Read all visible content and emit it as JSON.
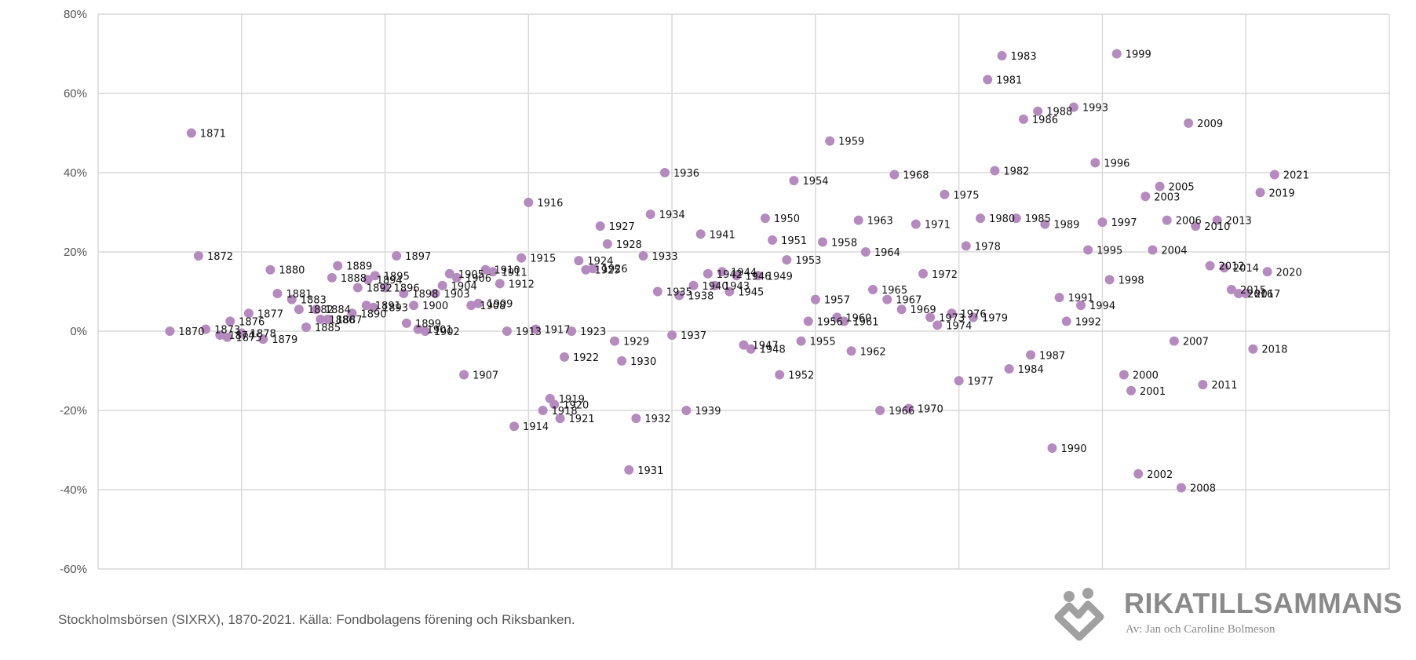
{
  "chart_data": {
    "type": "scatter",
    "title": "",
    "xlabel": "",
    "ylabel": "",
    "ylim": [
      -0.6,
      0.8
    ],
    "yticks": [
      "80%",
      "60%",
      "40%",
      "20%",
      "0%",
      "-20%",
      "-40%",
      "-60%"
    ],
    "ytick_values": [
      0.8,
      0.6,
      0.4,
      0.2,
      0,
      -0.2,
      -0.4,
      -0.6
    ],
    "x_hidden_range": [
      -0.06,
      0.84
    ],
    "x_gridlines": 9,
    "grid": true,
    "marker_color": "#b58bbf",
    "points": [
      {
        "label": "1870",
        "x": -0.01,
        "y": 0.0
      },
      {
        "label": "1871",
        "x": 0.005,
        "y": 0.5
      },
      {
        "label": "1872",
        "x": 0.01,
        "y": 0.19
      },
      {
        "label": "1873",
        "x": 0.015,
        "y": 0.005
      },
      {
        "label": "1874",
        "x": 0.025,
        "y": -0.01
      },
      {
        "label": "1875",
        "x": 0.03,
        "y": -0.015
      },
      {
        "label": "1876",
        "x": 0.032,
        "y": 0.025
      },
      {
        "label": "1877",
        "x": 0.045,
        "y": 0.045
      },
      {
        "label": "1878",
        "x": 0.04,
        "y": -0.005
      },
      {
        "label": "1879",
        "x": 0.055,
        "y": -0.02
      },
      {
        "label": "1880",
        "x": 0.06,
        "y": 0.155
      },
      {
        "label": "1881",
        "x": 0.065,
        "y": 0.095
      },
      {
        "label": "1882",
        "x": 0.08,
        "y": 0.055
      },
      {
        "label": "1883",
        "x": 0.075,
        "y": 0.08
      },
      {
        "label": "1884",
        "x": 0.092,
        "y": 0.055
      },
      {
        "label": "1885",
        "x": 0.085,
        "y": 0.01
      },
      {
        "label": "1886",
        "x": 0.095,
        "y": 0.03
      },
      {
        "label": "1887",
        "x": 0.1,
        "y": 0.03
      },
      {
        "label": "1888",
        "x": 0.103,
        "y": 0.135
      },
      {
        "label": "1889",
        "x": 0.107,
        "y": 0.165
      },
      {
        "label": "1890",
        "x": 0.117,
        "y": 0.045
      },
      {
        "label": "1891",
        "x": 0.127,
        "y": 0.065
      },
      {
        "label": "1892",
        "x": 0.121,
        "y": 0.11
      },
      {
        "label": "1893",
        "x": 0.132,
        "y": 0.06
      },
      {
        "label": "1894",
        "x": 0.128,
        "y": 0.13
      },
      {
        "label": "1895",
        "x": 0.133,
        "y": 0.14
      },
      {
        "label": "1896",
        "x": 0.14,
        "y": 0.11
      },
      {
        "label": "1897",
        "x": 0.148,
        "y": 0.19
      },
      {
        "label": "1898",
        "x": 0.153,
        "y": 0.095
      },
      {
        "label": "1899",
        "x": 0.155,
        "y": 0.02
      },
      {
        "label": "1900",
        "x": 0.16,
        "y": 0.065
      },
      {
        "label": "1901",
        "x": 0.163,
        "y": 0.005
      },
      {
        "label": "1902",
        "x": 0.168,
        "y": 0.0
      },
      {
        "label": "1903",
        "x": 0.175,
        "y": 0.095
      },
      {
        "label": "1904",
        "x": 0.18,
        "y": 0.115
      },
      {
        "label": "1905",
        "x": 0.185,
        "y": 0.145
      },
      {
        "label": "1906",
        "x": 0.19,
        "y": 0.135
      },
      {
        "label": "1907",
        "x": 0.195,
        "y": -0.11
      },
      {
        "label": "1908",
        "x": 0.2,
        "y": 0.065
      },
      {
        "label": "1909",
        "x": 0.205,
        "y": 0.07
      },
      {
        "label": "1910",
        "x": 0.21,
        "y": 0.155
      },
      {
        "label": "1911",
        "x": 0.215,
        "y": 0.15
      },
      {
        "label": "1912",
        "x": 0.22,
        "y": 0.12
      },
      {
        "label": "1913",
        "x": 0.225,
        "y": 0.0
      },
      {
        "label": "1914",
        "x": 0.23,
        "y": -0.24
      },
      {
        "label": "1915",
        "x": 0.235,
        "y": 0.185
      },
      {
        "label": "1916",
        "x": 0.24,
        "y": 0.325
      },
      {
        "label": "1917",
        "x": 0.245,
        "y": 0.005
      },
      {
        "label": "1918",
        "x": 0.25,
        "y": -0.2
      },
      {
        "label": "1919",
        "x": 0.255,
        "y": -0.17
      },
      {
        "label": "1920",
        "x": 0.258,
        "y": -0.185
      },
      {
        "label": "1921",
        "x": 0.262,
        "y": -0.22
      },
      {
        "label": "1922",
        "x": 0.265,
        "y": -0.065
      },
      {
        "label": "1923",
        "x": 0.27,
        "y": 0.0
      },
      {
        "label": "1924",
        "x": 0.275,
        "y": 0.178
      },
      {
        "label": "1925",
        "x": 0.28,
        "y": 0.155
      },
      {
        "label": "1926",
        "x": 0.285,
        "y": 0.158
      },
      {
        "label": "1927",
        "x": 0.29,
        "y": 0.265
      },
      {
        "label": "1928",
        "x": 0.295,
        "y": 0.22
      },
      {
        "label": "1929",
        "x": 0.3,
        "y": -0.025
      },
      {
        "label": "1930",
        "x": 0.305,
        "y": -0.075
      },
      {
        "label": "1931",
        "x": 0.31,
        "y": -0.35
      },
      {
        "label": "1932",
        "x": 0.315,
        "y": -0.22
      },
      {
        "label": "1933",
        "x": 0.32,
        "y": 0.19
      },
      {
        "label": "1934",
        "x": 0.325,
        "y": 0.295
      },
      {
        "label": "1935",
        "x": 0.33,
        "y": 0.1
      },
      {
        "label": "1936",
        "x": 0.335,
        "y": 0.4
      },
      {
        "label": "1937",
        "x": 0.34,
        "y": -0.01
      },
      {
        "label": "1938",
        "x": 0.345,
        "y": 0.09
      },
      {
        "label": "1939",
        "x": 0.35,
        "y": -0.2
      },
      {
        "label": "1940",
        "x": 0.355,
        "y": 0.115
      },
      {
        "label": "1941",
        "x": 0.36,
        "y": 0.245
      },
      {
        "label": "1942",
        "x": 0.365,
        "y": 0.145
      },
      {
        "label": "1943",
        "x": 0.37,
        "y": 0.115
      },
      {
        "label": "1944",
        "x": 0.375,
        "y": 0.15
      },
      {
        "label": "1945",
        "x": 0.38,
        "y": 0.1
      },
      {
        "label": "1946",
        "x": 0.385,
        "y": 0.14
      },
      {
        "label": "1947",
        "x": 0.39,
        "y": -0.035
      },
      {
        "label": "1948",
        "x": 0.395,
        "y": -0.045
      },
      {
        "label": "1949",
        "x": 0.4,
        "y": 0.14
      },
      {
        "label": "1950",
        "x": 0.405,
        "y": 0.285
      },
      {
        "label": "1951",
        "x": 0.41,
        "y": 0.23
      },
      {
        "label": "1952",
        "x": 0.415,
        "y": -0.11
      },
      {
        "label": "1953",
        "x": 0.42,
        "y": 0.18
      },
      {
        "label": "1954",
        "x": 0.425,
        "y": 0.38
      },
      {
        "label": "1955",
        "x": 0.43,
        "y": -0.025
      },
      {
        "label": "1956",
        "x": 0.435,
        "y": 0.025
      },
      {
        "label": "1957",
        "x": 0.44,
        "y": 0.08
      },
      {
        "label": "1958",
        "x": 0.445,
        "y": 0.225
      },
      {
        "label": "1959",
        "x": 0.45,
        "y": 0.48
      },
      {
        "label": "1960",
        "x": 0.455,
        "y": 0.035
      },
      {
        "label": "1961",
        "x": 0.46,
        "y": 0.025
      },
      {
        "label": "1962",
        "x": 0.465,
        "y": -0.05
      },
      {
        "label": "1963",
        "x": 0.47,
        "y": 0.28
      },
      {
        "label": "1964",
        "x": 0.475,
        "y": 0.2
      },
      {
        "label": "1965",
        "x": 0.48,
        "y": 0.105
      },
      {
        "label": "1966",
        "x": 0.485,
        "y": -0.2
      },
      {
        "label": "1967",
        "x": 0.49,
        "y": 0.08
      },
      {
        "label": "1968",
        "x": 0.495,
        "y": 0.395
      },
      {
        "label": "1969",
        "x": 0.5,
        "y": 0.055
      },
      {
        "label": "1970",
        "x": 0.505,
        "y": -0.195
      },
      {
        "label": "1971",
        "x": 0.51,
        "y": 0.27
      },
      {
        "label": "1972",
        "x": 0.515,
        "y": 0.145
      },
      {
        "label": "1973",
        "x": 0.52,
        "y": 0.035
      },
      {
        "label": "1974",
        "x": 0.525,
        "y": 0.015
      },
      {
        "label": "1975",
        "x": 0.53,
        "y": 0.345
      },
      {
        "label": "1976",
        "x": 0.535,
        "y": 0.045
      },
      {
        "label": "1977",
        "x": 0.54,
        "y": -0.125
      },
      {
        "label": "1978",
        "x": 0.545,
        "y": 0.215
      },
      {
        "label": "1979",
        "x": 0.55,
        "y": 0.035
      },
      {
        "label": "1980",
        "x": 0.555,
        "y": 0.285
      },
      {
        "label": "1981",
        "x": 0.56,
        "y": 0.635
      },
      {
        "label": "1982",
        "x": 0.565,
        "y": 0.405
      },
      {
        "label": "1983",
        "x": 0.57,
        "y": 0.695
      },
      {
        "label": "1984",
        "x": 0.575,
        "y": -0.095
      },
      {
        "label": "1985",
        "x": 0.58,
        "y": 0.285
      },
      {
        "label": "1986",
        "x": 0.585,
        "y": 0.535
      },
      {
        "label": "1987",
        "x": 0.59,
        "y": -0.06
      },
      {
        "label": "1988",
        "x": 0.595,
        "y": 0.555
      },
      {
        "label": "1989",
        "x": 0.6,
        "y": 0.27
      },
      {
        "label": "1990",
        "x": 0.605,
        "y": -0.295
      },
      {
        "label": "1991",
        "x": 0.61,
        "y": 0.085
      },
      {
        "label": "1992",
        "x": 0.615,
        "y": 0.025
      },
      {
        "label": "1993",
        "x": 0.62,
        "y": 0.565
      },
      {
        "label": "1994",
        "x": 0.625,
        "y": 0.065
      },
      {
        "label": "1995",
        "x": 0.63,
        "y": 0.205
      },
      {
        "label": "1996",
        "x": 0.635,
        "y": 0.425
      },
      {
        "label": "1997",
        "x": 0.64,
        "y": 0.275
      },
      {
        "label": "1998",
        "x": 0.645,
        "y": 0.13
      },
      {
        "label": "1999",
        "x": 0.65,
        "y": 0.7
      },
      {
        "label": "2000",
        "x": 0.655,
        "y": -0.11
      },
      {
        "label": "2001",
        "x": 0.66,
        "y": -0.15
      },
      {
        "label": "2002",
        "x": 0.665,
        "y": -0.36
      },
      {
        "label": "2003",
        "x": 0.67,
        "y": 0.34
      },
      {
        "label": "2004",
        "x": 0.675,
        "y": 0.205
      },
      {
        "label": "2005",
        "x": 0.68,
        "y": 0.365
      },
      {
        "label": "2006",
        "x": 0.685,
        "y": 0.28
      },
      {
        "label": "2007",
        "x": 0.69,
        "y": -0.025
      },
      {
        "label": "2008",
        "x": 0.695,
        "y": -0.395
      },
      {
        "label": "2009",
        "x": 0.7,
        "y": 0.525
      },
      {
        "label": "2010",
        "x": 0.705,
        "y": 0.265
      },
      {
        "label": "2011",
        "x": 0.71,
        "y": -0.135
      },
      {
        "label": "2012",
        "x": 0.715,
        "y": 0.165
      },
      {
        "label": "2013",
        "x": 0.72,
        "y": 0.28
      },
      {
        "label": "2014",
        "x": 0.725,
        "y": 0.16
      },
      {
        "label": "2015",
        "x": 0.73,
        "y": 0.105
      },
      {
        "label": "2016",
        "x": 0.735,
        "y": 0.095
      },
      {
        "label": "2017",
        "x": 0.74,
        "y": 0.095
      },
      {
        "label": "2018",
        "x": 0.745,
        "y": -0.045
      },
      {
        "label": "2019",
        "x": 0.75,
        "y": 0.35
      },
      {
        "label": "2020",
        "x": 0.755,
        "y": 0.15
      },
      {
        "label": "2021",
        "x": 0.76,
        "y": 0.395
      }
    ]
  },
  "footer": {
    "source": "Stockholmsbörsen (SIXRX), 1870-2021. Källa: Fondbolagens förening och Riksbanken."
  },
  "logo": {
    "name": "RIKATILLSAMMANS",
    "tagline": "Av: Jan och Caroline Bolmeson",
    "color": "#8a8a8a"
  }
}
